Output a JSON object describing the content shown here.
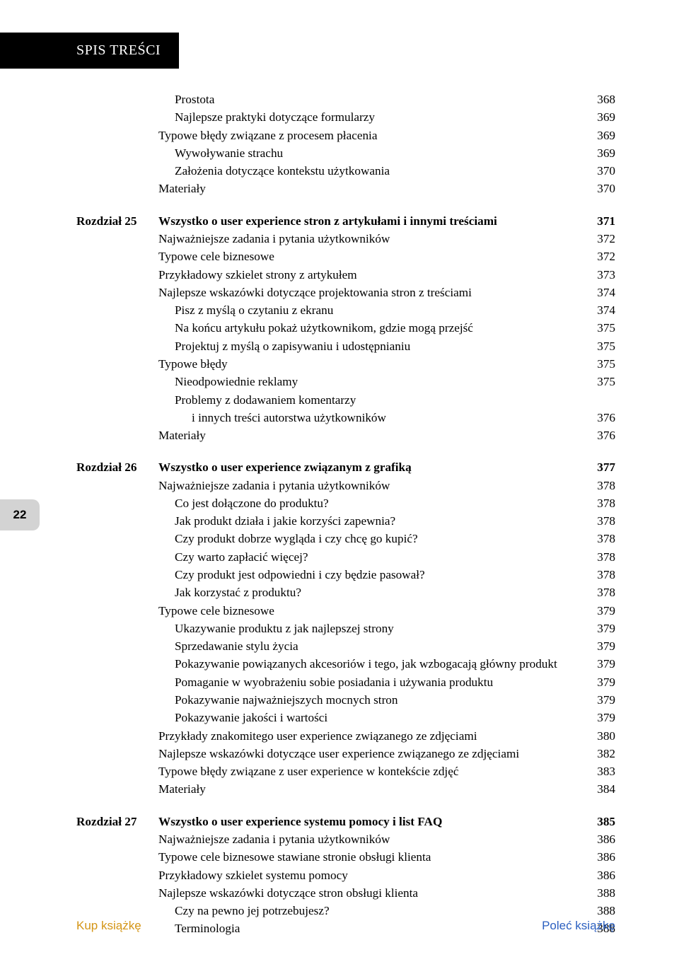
{
  "header": {
    "title": "SPIS TREŚCI"
  },
  "page_tab": "22",
  "footer": {
    "buy": "Kup książkę",
    "recommend": "Poleć książkę"
  },
  "colors": {
    "buy": "#d49516",
    "recommend": "#2b5fc0",
    "header_bg": "#000000",
    "tab_bg": "#d3d3d3"
  },
  "entries": [
    {
      "type": "row",
      "indent": 2,
      "text": "Prostota",
      "page": "368"
    },
    {
      "type": "row",
      "indent": 2,
      "text": "Najlepsze praktyki dotyczące formularzy",
      "page": "369"
    },
    {
      "type": "row",
      "indent": 1,
      "text": "Typowe błędy związane z procesem płacenia",
      "page": "369"
    },
    {
      "type": "row",
      "indent": 2,
      "text": "Wywoływanie strachu",
      "page": "369"
    },
    {
      "type": "row",
      "indent": 2,
      "text": "Założenia dotyczące kontekstu użytkowania",
      "page": "370"
    },
    {
      "type": "row",
      "indent": 1,
      "text": "Materiały",
      "page": "370"
    },
    {
      "type": "spacer"
    },
    {
      "type": "chapter",
      "label": "Rozdział 25",
      "text": "Wszystko o user experience stron z artykułami i innymi treściami",
      "page": "371"
    },
    {
      "type": "row",
      "indent": 1,
      "text": "Najważniejsze zadania i pytania użytkowników",
      "page": "372"
    },
    {
      "type": "row",
      "indent": 1,
      "text": "Typowe cele biznesowe",
      "page": "372"
    },
    {
      "type": "row",
      "indent": 1,
      "text": "Przykładowy szkielet strony z artykułem",
      "page": "373"
    },
    {
      "type": "row",
      "indent": 1,
      "text": "Najlepsze wskazówki dotyczące projektowania stron z treściami",
      "page": "374"
    },
    {
      "type": "row",
      "indent": 2,
      "text": "Pisz z myślą o czytaniu z ekranu",
      "page": "374"
    },
    {
      "type": "row",
      "indent": 2,
      "text": "Na końcu artykułu pokaż użytkownikom, gdzie mogą przejść",
      "page": "375"
    },
    {
      "type": "row",
      "indent": 2,
      "text": "Projektuj z myślą o zapisywaniu i udostępnianiu",
      "page": "375"
    },
    {
      "type": "row",
      "indent": 1,
      "text": "Typowe błędy",
      "page": "375"
    },
    {
      "type": "row",
      "indent": 2,
      "text": "Nieodpowiednie reklamy",
      "page": "375"
    },
    {
      "type": "row",
      "indent": 2,
      "text": "Problemy z dodawaniem komentarzy",
      "page": ""
    },
    {
      "type": "row",
      "indent": 3,
      "text": "i innych treści autorstwa użytkowników",
      "page": "376"
    },
    {
      "type": "row",
      "indent": 1,
      "text": "Materiały",
      "page": "376"
    },
    {
      "type": "spacer"
    },
    {
      "type": "chapter",
      "label": "Rozdział 26",
      "text": "Wszystko o user experience związanym z grafiką",
      "page": "377"
    },
    {
      "type": "row",
      "indent": 1,
      "text": "Najważniejsze zadania i pytania użytkowników",
      "page": "378"
    },
    {
      "type": "row",
      "indent": 2,
      "text": "Co jest dołączone do produktu?",
      "page": "378"
    },
    {
      "type": "row",
      "indent": 2,
      "text": "Jak produkt działa i jakie korzyści zapewnia?",
      "page": "378"
    },
    {
      "type": "row",
      "indent": 2,
      "text": "Czy produkt dobrze wygląda i czy chcę go kupić?",
      "page": "378"
    },
    {
      "type": "row",
      "indent": 2,
      "text": "Czy warto zapłacić więcej?",
      "page": "378"
    },
    {
      "type": "row",
      "indent": 2,
      "text": "Czy produkt jest odpowiedni i czy będzie pasował?",
      "page": "378"
    },
    {
      "type": "row",
      "indent": 2,
      "text": "Jak korzystać z produktu?",
      "page": "378"
    },
    {
      "type": "row",
      "indent": 1,
      "text": "Typowe cele biznesowe",
      "page": "379"
    },
    {
      "type": "row",
      "indent": 2,
      "text": "Ukazywanie produktu z jak najlepszej strony",
      "page": "379"
    },
    {
      "type": "row",
      "indent": 2,
      "text": "Sprzedawanie stylu życia",
      "page": "379"
    },
    {
      "type": "row",
      "indent": 2,
      "text": "Pokazywanie powiązanych akcesoriów i tego, jak wzbogacają główny produkt",
      "page": "379"
    },
    {
      "type": "row",
      "indent": 2,
      "text": "Pomaganie w wyobrażeniu sobie posiadania i używania produktu",
      "page": "379"
    },
    {
      "type": "row",
      "indent": 2,
      "text": "Pokazywanie najważniejszych mocnych stron",
      "page": "379"
    },
    {
      "type": "row",
      "indent": 2,
      "text": "Pokazywanie jakości i wartości",
      "page": "379"
    },
    {
      "type": "row",
      "indent": 1,
      "text": "Przykłady znakomitego user experience związanego ze zdjęciami",
      "page": "380"
    },
    {
      "type": "row",
      "indent": 1,
      "text": "Najlepsze wskazówki dotyczące user experience związanego ze zdjęciami",
      "page": "382"
    },
    {
      "type": "row",
      "indent": 1,
      "text": "Typowe błędy związane z user experience w kontekście zdjęć",
      "page": "383"
    },
    {
      "type": "row",
      "indent": 1,
      "text": "Materiały",
      "page": "384"
    },
    {
      "type": "spacer"
    },
    {
      "type": "chapter",
      "label": "Rozdział 27",
      "text": "Wszystko o user experience systemu pomocy i list FAQ",
      "page": "385"
    },
    {
      "type": "row",
      "indent": 1,
      "text": "Najważniejsze zadania i pytania użytkowników",
      "page": "386"
    },
    {
      "type": "row",
      "indent": 1,
      "text": "Typowe cele biznesowe stawiane stronie obsługi klienta",
      "page": "386"
    },
    {
      "type": "row",
      "indent": 1,
      "text": "Przykładowy szkielet systemu pomocy",
      "page": "386"
    },
    {
      "type": "row",
      "indent": 1,
      "text": "Najlepsze wskazówki dotyczące stron obsługi klienta",
      "page": "388"
    },
    {
      "type": "row",
      "indent": 2,
      "text": "Czy na pewno jej potrzebujesz?",
      "page": "388"
    },
    {
      "type": "row",
      "indent": 2,
      "text": "Terminologia",
      "page": "388"
    }
  ]
}
